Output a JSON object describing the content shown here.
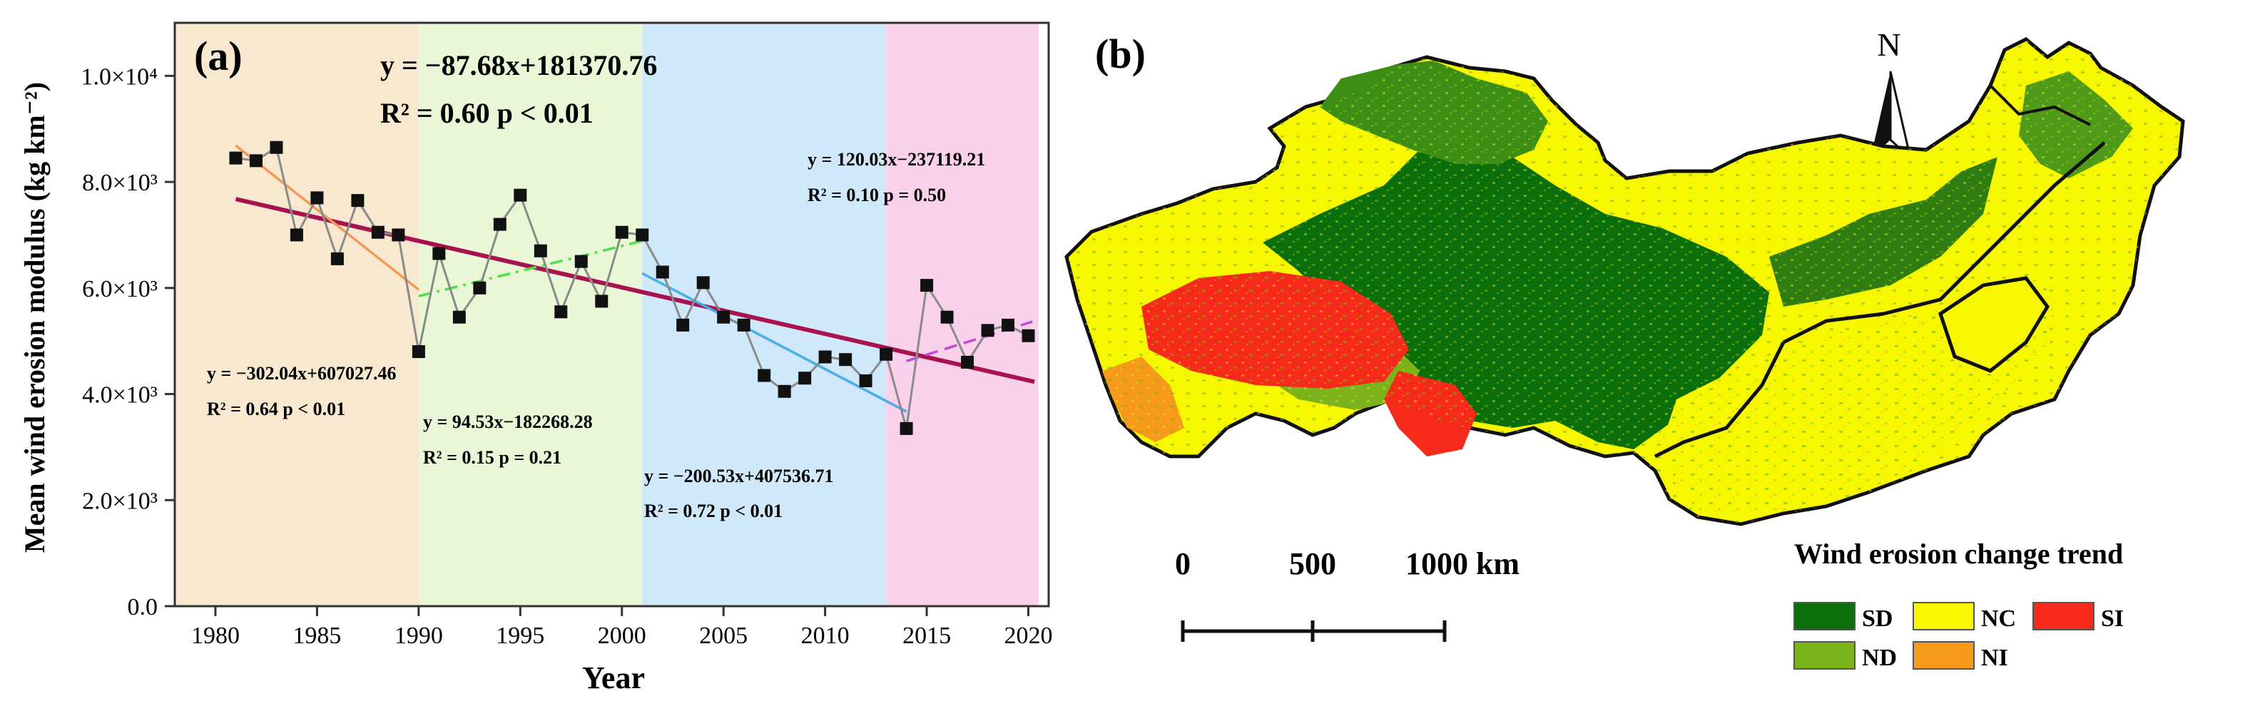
{
  "chart_data": [
    {
      "type": "line",
      "panel_label": "(a)",
      "xlabel": "Year",
      "ylabel": "Mean wind erosion modulus (kg km⁻²)",
      "xlim": [
        1978,
        2021
      ],
      "ylim": [
        0,
        11000
      ],
      "x_ticks": [
        1980,
        1985,
        1990,
        1995,
        2000,
        2005,
        2010,
        2015,
        2020
      ],
      "x_tick_labels": [
        "1980",
        "1985",
        "1990",
        "1995",
        "2000",
        "2005",
        "2010",
        "2015",
        "2020"
      ],
      "y_ticks": [
        0,
        2000,
        4000,
        6000,
        8000,
        10000
      ],
      "y_tick_labels": [
        "0.0",
        "2.0×10³",
        "4.0×10³",
        "6.0×10³",
        "8.0×10³",
        "1.0×10⁴"
      ],
      "periods": [
        {
          "from": 1978,
          "to": 1990,
          "color": "#f8e8cf"
        },
        {
          "from": 1990,
          "to": 2001,
          "color": "#e9f7d6"
        },
        {
          "from": 2001,
          "to": 2013,
          "color": "#cfe8fa"
        },
        {
          "from": 2013,
          "to": 2020.5,
          "color": "#fad1ea"
        }
      ],
      "series": [
        {
          "name": "Mean wind erosion modulus",
          "x": [
            1981,
            1982,
            1983,
            1984,
            1985,
            1986,
            1987,
            1988,
            1989,
            1990,
            1991,
            1992,
            1993,
            1994,
            1995,
            1996,
            1997,
            1998,
            1999,
            2000,
            2001,
            2002,
            2003,
            2004,
            2005,
            2006,
            2007,
            2008,
            2009,
            2010,
            2011,
            2012,
            2013,
            2014,
            2015,
            2016,
            2017,
            2018,
            2019,
            2020
          ],
          "values": [
            8450,
            8400,
            8650,
            7000,
            7700,
            6550,
            7650,
            7050,
            7000,
            4800,
            6650,
            5450,
            6000,
            7200,
            7750,
            6700,
            5550,
            6500,
            5750,
            7050,
            7000,
            6300,
            5300,
            6100,
            5450,
            5300,
            4350,
            4050,
            4300,
            4700,
            4650,
            4250,
            4750,
            3350,
            6050,
            5450,
            4600,
            5200,
            5300,
            5100
          ]
        }
      ],
      "trend_lines": [
        {
          "name": "overall",
          "x_range": [
            1981,
            2020.3
          ],
          "slope": -87.68,
          "intercept": 181370.76,
          "color": "#a8124e",
          "dash": "solid",
          "label": "y = −87.68x+181370.76",
          "r2_label": "R² = 0.60 p < 0.01"
        },
        {
          "name": "1981-1990",
          "x_range": [
            1981,
            1990
          ],
          "slope": -302.04,
          "intercept": 607027.46,
          "color": "#f09a5a",
          "dash": "solid",
          "label": "y = −302.04x+607027.46",
          "r2_label": "R² = 0.64 p < 0.01"
        },
        {
          "name": "1990-2001",
          "x_range": [
            1990,
            2001
          ],
          "slope": 94.53,
          "intercept": -182268.28,
          "color": "#4fe04a",
          "dash": "dashdot",
          "label": "y = 94.53x−182268.28",
          "r2_label": "R² = 0.15 p = 0.21"
        },
        {
          "name": "2001-2014",
          "x_range": [
            2001,
            2014
          ],
          "slope": -200.53,
          "intercept": 407536.71,
          "color": "#4aaee8",
          "dash": "solid",
          "label": "y = −200.53x+407536.71",
          "r2_label": "R² = 0.72 p < 0.01"
        },
        {
          "name": "2014-2020",
          "x_range": [
            2014,
            2020.2
          ],
          "slope": 120.03,
          "intercept": -237119.21,
          "color": "#c04ad8",
          "dash": "dash",
          "label": "y = 120.03x−237119.21",
          "r2_label": "R² = 0.10 p = 0.50"
        }
      ]
    }
  ],
  "map": {
    "panel_label": "(b)",
    "north_label": "N",
    "scale_labels": [
      "0",
      "500",
      "1000 km"
    ],
    "legend_title": "Wind erosion change trend",
    "legend": [
      {
        "code": "SD",
        "color": "#0a6e0a"
      },
      {
        "code": "NC",
        "color": "#f7f700"
      },
      {
        "code": "SI",
        "color": "#f52a1a"
      },
      {
        "code": "ND",
        "color": "#7cb21c"
      },
      {
        "code": "NI",
        "color": "#f59a1a"
      }
    ]
  }
}
